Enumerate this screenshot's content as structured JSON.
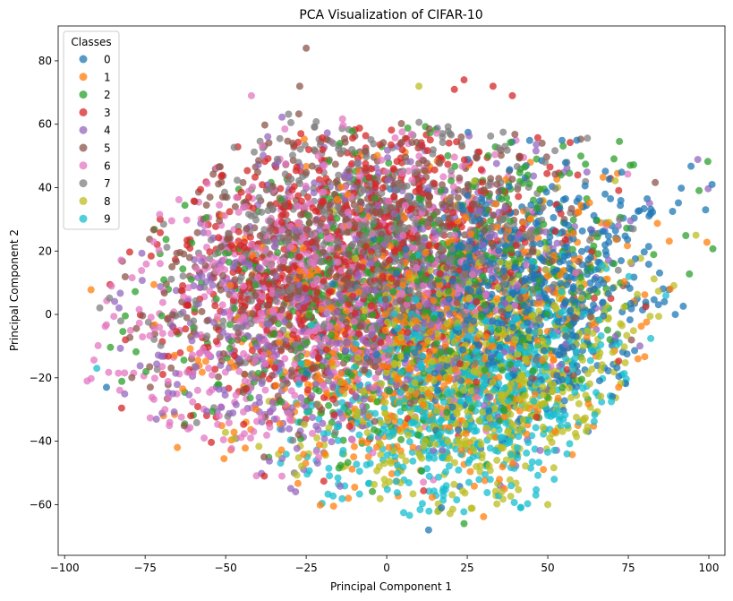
{
  "chart_data": {
    "type": "scatter",
    "title": "PCA Visualization of CIFAR-10",
    "xlabel": "Principal Component 1",
    "ylabel": "Principal Component 2",
    "xlim": [
      -102,
      105
    ],
    "ylim": [
      -76,
      91
    ],
    "xticks": [
      -100,
      -75,
      -50,
      -25,
      0,
      25,
      50,
      75,
      100
    ],
    "yticks": [
      -60,
      -40,
      -20,
      0,
      20,
      40,
      60,
      80
    ],
    "grid": false,
    "legend": {
      "title": "Classes",
      "placement": "top-left"
    },
    "marker_alpha": 0.75,
    "series": [
      {
        "name": "0",
        "color": "#1f77b4",
        "center": [
          40,
          5
        ],
        "spread": [
          22,
          20
        ]
      },
      {
        "name": "1",
        "color": "#ff7f0e",
        "center": [
          10,
          -5
        ],
        "spread": [
          32,
          24
        ]
      },
      {
        "name": "2",
        "color": "#2ca02c",
        "center": [
          5,
          8
        ],
        "spread": [
          34,
          24
        ]
      },
      {
        "name": "3",
        "color": "#d62728",
        "center": [
          -10,
          18
        ],
        "spread": [
          32,
          24
        ]
      },
      {
        "name": "4",
        "color": "#9467bd",
        "center": [
          -5,
          5
        ],
        "spread": [
          34,
          24
        ]
      },
      {
        "name": "5",
        "color": "#8c564b",
        "center": [
          -10,
          20
        ],
        "spread": [
          32,
          22
        ]
      },
      {
        "name": "6",
        "color": "#e377c2",
        "center": [
          -25,
          5
        ],
        "spread": [
          30,
          24
        ]
      },
      {
        "name": "7",
        "color": "#7f7f7f",
        "center": [
          -5,
          20
        ],
        "spread": [
          30,
          22
        ]
      },
      {
        "name": "8",
        "color": "#bcbd22",
        "center": [
          30,
          -20
        ],
        "spread": [
          26,
          20
        ]
      },
      {
        "name": "9",
        "color": "#17becf",
        "center": [
          25,
          -25
        ],
        "spread": [
          24,
          18
        ]
      }
    ],
    "outliers": [
      {
        "x": -25,
        "y": 84,
        "series": "5"
      },
      {
        "x": 10,
        "y": 72,
        "series": "8"
      },
      {
        "x": 21,
        "y": 71,
        "series": "3"
      },
      {
        "x": -27,
        "y": 72,
        "series": "5"
      },
      {
        "x": -42,
        "y": 69,
        "series": "6"
      },
      {
        "x": 24,
        "y": 74,
        "series": "3"
      },
      {
        "x": 33,
        "y": 72,
        "series": "3"
      },
      {
        "x": 39,
        "y": 69,
        "series": "3"
      },
      {
        "x": 101,
        "y": 41,
        "series": "0"
      },
      {
        "x": 99,
        "y": 33,
        "series": "0"
      },
      {
        "x": 96,
        "y": 25,
        "series": "8"
      },
      {
        "x": -93,
        "y": -21,
        "series": "6"
      },
      {
        "x": -90,
        "y": -17,
        "series": "9"
      },
      {
        "x": -87,
        "y": -23,
        "series": "0"
      },
      {
        "x": 13,
        "y": -68,
        "series": "0"
      },
      {
        "x": 17,
        "y": -61,
        "series": "0"
      },
      {
        "x": 24,
        "y": -66,
        "series": "2"
      },
      {
        "x": -38,
        "y": -51,
        "series": "3"
      },
      {
        "x": -65,
        "y": -42,
        "series": "1"
      },
      {
        "x": 50,
        "y": -60,
        "series": "8"
      },
      {
        "x": 52,
        "y": -52,
        "series": "9"
      },
      {
        "x": 78,
        "y": -14,
        "series": "1"
      },
      {
        "x": 72,
        "y": -23,
        "series": "1"
      },
      {
        "x": 88,
        "y": 8,
        "series": "1"
      }
    ]
  }
}
